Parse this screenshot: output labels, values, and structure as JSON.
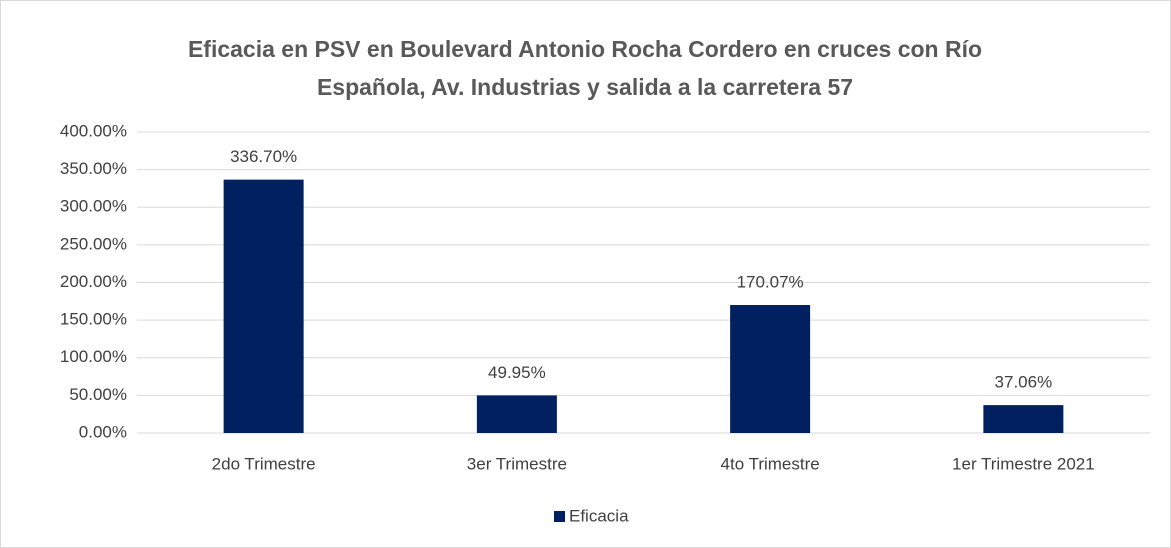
{
  "chart_data": {
    "type": "bar",
    "title": "Eficacia en PSV en Boulevard Antonio Rocha Cordero en cruces con Río Española, Av. Industrias y salida a la carretera 57",
    "categories": [
      "2do Trimestre",
      "3er Trimestre",
      "4to Trimestre",
      "1er Trimestre 2021"
    ],
    "series": [
      {
        "name": "Eficacia",
        "color": "#002060",
        "values": [
          336.7,
          49.95,
          170.07,
          37.06
        ],
        "value_labels": [
          "336.70%",
          "49.95%",
          "170.07%",
          "37.06%"
        ]
      }
    ],
    "ylim": [
      0,
      400
    ],
    "yticks": [
      {
        "value": 0,
        "label": "0.00%"
      },
      {
        "value": 50,
        "label": "50.00%"
      },
      {
        "value": 100,
        "label": "100.00%"
      },
      {
        "value": 150,
        "label": "150.00%"
      },
      {
        "value": 200,
        "label": "200.00%"
      },
      {
        "value": 250,
        "label": "250.00%"
      },
      {
        "value": 300,
        "label": "300.00%"
      },
      {
        "value": 350,
        "label": "350.00%"
      },
      {
        "value": 400,
        "label": "400.00%"
      }
    ],
    "grid": true,
    "legend": "bottom"
  }
}
